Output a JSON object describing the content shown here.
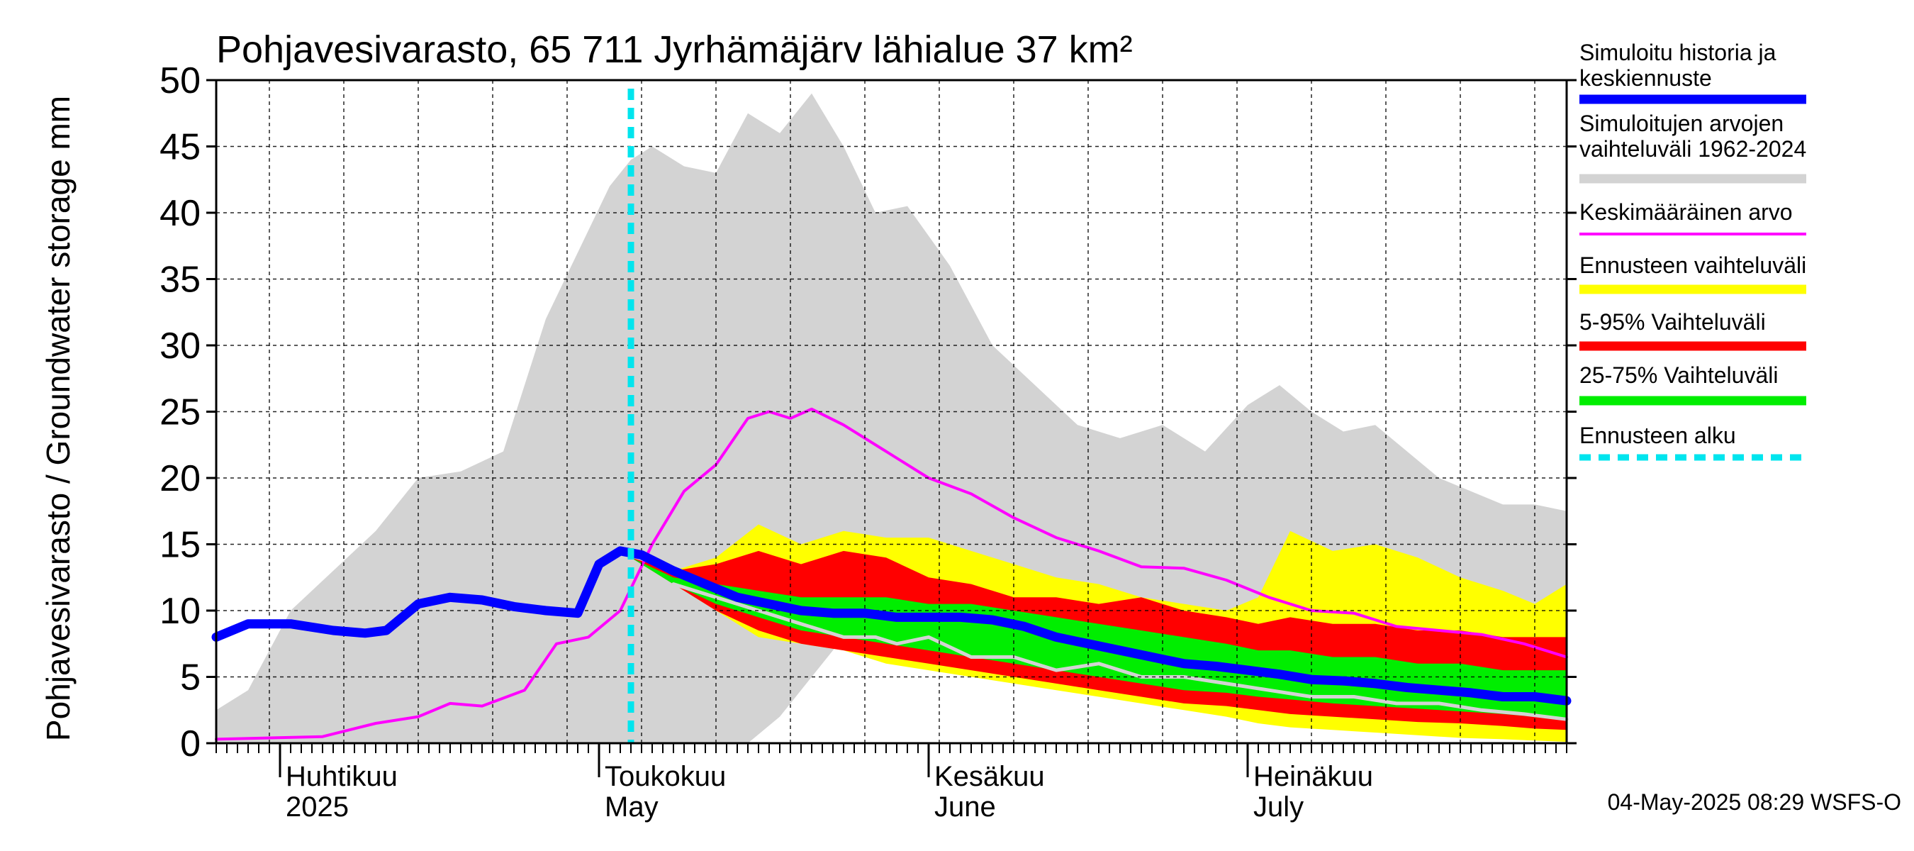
{
  "chart_data": {
    "type": "area",
    "title": "Pohjavesivarasto, 65 711 Jyrhämäjärv lähialue 37 km²",
    "ylabel": "Pohjavesivarasto / Groundwater storage   mm",
    "ylim": [
      0,
      50
    ],
    "yticks": [
      0,
      5,
      10,
      15,
      20,
      25,
      30,
      35,
      40,
      45,
      50
    ],
    "xlim": [
      "2025-03-26",
      "2025-07-31"
    ],
    "month_labels": [
      {
        "date": "2025-04-01",
        "line1": "Huhtikuu",
        "line2": "2025"
      },
      {
        "date": "2025-05-01",
        "line1": "Toukokuu",
        "line2": "May"
      },
      {
        "date": "2025-06-01",
        "line1": "Kesäkuu",
        "line2": "June"
      },
      {
        "date": "2025-07-01",
        "line1": "Heinäkuu",
        "line2": "July"
      }
    ],
    "forecast_start": "2025-05-04",
    "series": [
      {
        "name": "Simuloitujen arvojen vaihteluväli 1962-2024",
        "color": "#d3d3d3",
        "x": [
          "2025-03-26",
          "2025-03-29",
          "2025-04-02",
          "2025-04-06",
          "2025-04-10",
          "2025-04-14",
          "2025-04-18",
          "2025-04-22",
          "2025-04-26",
          "2025-04-29",
          "2025-05-02",
          "2025-05-04",
          "2025-05-06",
          "2025-05-09",
          "2025-05-12",
          "2025-05-15",
          "2025-05-18",
          "2025-05-21",
          "2025-05-24",
          "2025-05-27",
          "2025-05-30",
          "2025-06-03",
          "2025-06-07",
          "2025-06-11",
          "2025-06-15",
          "2025-06-19",
          "2025-06-23",
          "2025-06-27",
          "2025-07-01",
          "2025-07-04",
          "2025-07-07",
          "2025-07-10",
          "2025-07-13",
          "2025-07-16",
          "2025-07-19",
          "2025-07-22",
          "2025-07-25",
          "2025-07-28",
          "2025-07-31"
        ],
        "upper": [
          2.5,
          4,
          10,
          13,
          16,
          20,
          20.5,
          22,
          32,
          37,
          42,
          44,
          45,
          43.5,
          43,
          47.5,
          46,
          49,
          45,
          40,
          40.5,
          36,
          30,
          27,
          24,
          23,
          24,
          22,
          25.5,
          27,
          25,
          23.5,
          24,
          22,
          20,
          19,
          18,
          18,
          17.5
        ],
        "lower": [
          0,
          0,
          0,
          0,
          0,
          0,
          0,
          0,
          0,
          0,
          0,
          0,
          0,
          0,
          0,
          0,
          2,
          5,
          8,
          8,
          7,
          6,
          5,
          4.5,
          4,
          3.5,
          3,
          3,
          2.5,
          2,
          2,
          1.8,
          1.6,
          1.4,
          1.2,
          1,
          0.8,
          0.6,
          0.5
        ]
      },
      {
        "name": "Ennusteen vaihteluväli",
        "color": "#ffff00",
        "x": [
          "2025-05-04",
          "2025-05-08",
          "2025-05-12",
          "2025-05-16",
          "2025-05-20",
          "2025-05-24",
          "2025-05-28",
          "2025-06-01",
          "2025-06-05",
          "2025-06-09",
          "2025-06-13",
          "2025-06-17",
          "2025-06-21",
          "2025-06-25",
          "2025-06-29",
          "2025-07-02",
          "2025-07-05",
          "2025-07-09",
          "2025-07-13",
          "2025-07-17",
          "2025-07-21",
          "2025-07-25",
          "2025-07-28",
          "2025-07-31"
        ],
        "upper": [
          14,
          13,
          14,
          16.5,
          15,
          16,
          15.5,
          15.5,
          14.5,
          13.5,
          12.5,
          12,
          11,
          10.5,
          10,
          11,
          16,
          14.5,
          15,
          14,
          12.5,
          11.5,
          10.5,
          12
        ],
        "lower": [
          14,
          12,
          10,
          8,
          7.5,
          7,
          6,
          5.5,
          5,
          4.5,
          4,
          3.5,
          3,
          2.5,
          2,
          1.5,
          1.2,
          1,
          0.8,
          0.6,
          0.4,
          0.3,
          0.2,
          0.1
        ]
      },
      {
        "name": "5-95% Vaihteluväli",
        "color": "#ff0000",
        "x": [
          "2025-05-04",
          "2025-05-08",
          "2025-05-12",
          "2025-05-16",
          "2025-05-20",
          "2025-05-24",
          "2025-05-28",
          "2025-06-01",
          "2025-06-05",
          "2025-06-09",
          "2025-06-13",
          "2025-06-17",
          "2025-06-21",
          "2025-06-25",
          "2025-06-29",
          "2025-07-02",
          "2025-07-05",
          "2025-07-09",
          "2025-07-13",
          "2025-07-17",
          "2025-07-21",
          "2025-07-25",
          "2025-07-28",
          "2025-07-31"
        ],
        "upper": [
          14,
          13,
          13.5,
          14.5,
          13.5,
          14.5,
          14,
          12.5,
          12,
          11,
          11,
          10.5,
          11,
          10,
          9.5,
          9,
          9.5,
          9,
          9,
          8.5,
          8.5,
          8,
          8,
          8
        ],
        "lower": [
          14,
          12,
          10,
          8.5,
          7.5,
          7,
          6.5,
          6,
          5.5,
          5,
          4.5,
          4,
          3.5,
          3,
          2.8,
          2.5,
          2.2,
          2,
          1.8,
          1.6,
          1.5,
          1.3,
          1.1,
          1
        ]
      },
      {
        "name": "25-75% Vaihteluväli",
        "color": "#00ee00",
        "x": [
          "2025-05-04",
          "2025-05-08",
          "2025-05-12",
          "2025-05-16",
          "2025-05-20",
          "2025-05-24",
          "2025-05-28",
          "2025-06-01",
          "2025-06-05",
          "2025-06-09",
          "2025-06-13",
          "2025-06-17",
          "2025-06-21",
          "2025-06-25",
          "2025-06-29",
          "2025-07-02",
          "2025-07-05",
          "2025-07-09",
          "2025-07-13",
          "2025-07-17",
          "2025-07-21",
          "2025-07-25",
          "2025-07-28",
          "2025-07-31"
        ],
        "upper": [
          14,
          12.5,
          12,
          11.5,
          11,
          11,
          11,
          10.5,
          10.5,
          10,
          9.5,
          9,
          8.5,
          8,
          7.5,
          7,
          7,
          6.5,
          6.5,
          6,
          6,
          5.5,
          5.5,
          5.5
        ],
        "lower": [
          14,
          12,
          10.5,
          9.5,
          8.5,
          8,
          7.5,
          7,
          6.5,
          6,
          5.5,
          5,
          4.5,
          4,
          3.8,
          3.5,
          3.3,
          3,
          2.8,
          2.6,
          2.4,
          2.2,
          2,
          1.8
        ]
      },
      {
        "name": "Keskimääräinen arvo",
        "color": "#ff00ff",
        "x": [
          "2025-03-26",
          "2025-04-05",
          "2025-04-10",
          "2025-04-14",
          "2025-04-17",
          "2025-04-20",
          "2025-04-24",
          "2025-04-27",
          "2025-04-30",
          "2025-05-03",
          "2025-05-06",
          "2025-05-09",
          "2025-05-12",
          "2025-05-15",
          "2025-05-17",
          "2025-05-19",
          "2025-05-21",
          "2025-05-24",
          "2025-05-28",
          "2025-06-01",
          "2025-06-05",
          "2025-06-09",
          "2025-06-13",
          "2025-06-17",
          "2025-06-21",
          "2025-06-25",
          "2025-06-29",
          "2025-07-03",
          "2025-07-07",
          "2025-07-11",
          "2025-07-15",
          "2025-07-19",
          "2025-07-23",
          "2025-07-27",
          "2025-07-31"
        ],
        "values": [
          0.3,
          0.5,
          1.5,
          2,
          3,
          2.8,
          4,
          7.5,
          8,
          10,
          15,
          19,
          21,
          24.5,
          25,
          24.5,
          25.2,
          24,
          22,
          20,
          18.8,
          17,
          15.5,
          14.5,
          13.3,
          13.2,
          12.3,
          11,
          10,
          9.8,
          8.8,
          8.5,
          8.2,
          7.5,
          6.5
        ]
      },
      {
        "name": "Simuloitu historia ja keskiennuste",
        "color": "#0000ff",
        "x": [
          "2025-03-26",
          "2025-03-29",
          "2025-04-02",
          "2025-04-06",
          "2025-04-09",
          "2025-04-11",
          "2025-04-14",
          "2025-04-17",
          "2025-04-20",
          "2025-04-23",
          "2025-04-26",
          "2025-04-29",
          "2025-05-01",
          "2025-05-03",
          "2025-05-05",
          "2025-05-08",
          "2025-05-11",
          "2025-05-14",
          "2025-05-17",
          "2025-05-20",
          "2025-05-23",
          "2025-05-26",
          "2025-05-29",
          "2025-06-01",
          "2025-06-04",
          "2025-06-07",
          "2025-06-10",
          "2025-06-13",
          "2025-06-16",
          "2025-06-19",
          "2025-06-22",
          "2025-06-25",
          "2025-06-28",
          "2025-07-01",
          "2025-07-04",
          "2025-07-07",
          "2025-07-10",
          "2025-07-13",
          "2025-07-16",
          "2025-07-19",
          "2025-07-22",
          "2025-07-25",
          "2025-07-28",
          "2025-07-31"
        ],
        "values": [
          8,
          9,
          9,
          8.5,
          8.3,
          8.5,
          10.5,
          11,
          10.8,
          10.3,
          10,
          9.8,
          13.5,
          14.5,
          14.2,
          13,
          12,
          11,
          10.5,
          10,
          9.8,
          9.8,
          9.5,
          9.5,
          9.5,
          9.3,
          8.8,
          8,
          7.5,
          7,
          6.5,
          6,
          5.8,
          5.5,
          5.2,
          4.8,
          4.7,
          4.5,
          4.2,
          4,
          3.8,
          3.5,
          3.5,
          3.2
        ]
      },
      {
        "name": "Ennusteen alku",
        "color": "#00e5ee"
      },
      {
        "name": "",
        "color": "#d3d3d3",
        "x": [
          "2025-05-08",
          "2025-05-12",
          "2025-05-16",
          "2025-05-20",
          "2025-05-24",
          "2025-05-27",
          "2025-05-29",
          "2025-06-01",
          "2025-06-05",
          "2025-06-09",
          "2025-06-13",
          "2025-06-17",
          "2025-06-21",
          "2025-06-25",
          "2025-06-29",
          "2025-07-03",
          "2025-07-07",
          "2025-07-11",
          "2025-07-15",
          "2025-07-19",
          "2025-07-23",
          "2025-07-27",
          "2025-07-31"
        ],
        "values": [
          12,
          11,
          10,
          9,
          8,
          8,
          7.5,
          8,
          6.5,
          6.5,
          5.5,
          6,
          5,
          5,
          4.5,
          4,
          3.5,
          3.5,
          3,
          3,
          2.5,
          2.2,
          1.8
        ]
      }
    ],
    "legend_position": "right"
  },
  "legend": {
    "items": [
      {
        "label_lines": [
          "Simuloitu historia ja",
          "keskiennuste"
        ],
        "color": "#0000ff",
        "style": "thick"
      },
      {
        "label_lines": [
          "Simuloitujen arvojen",
          "vaihteluväli 1962-2024"
        ],
        "color": "#d3d3d3",
        "style": "thick"
      },
      {
        "label_lines": [
          "Keskimääräinen arvo"
        ],
        "color": "#ff00ff",
        "style": "thin"
      },
      {
        "label_lines": [
          "Ennusteen vaihteluväli"
        ],
        "color": "#ffff00",
        "style": "thick"
      },
      {
        "label_lines": [
          "5-95% Vaihteluväli"
        ],
        "color": "#ff0000",
        "style": "thick"
      },
      {
        "label_lines": [
          "25-75% Vaihteluväli"
        ],
        "color": "#00ee00",
        "style": "thick"
      },
      {
        "label_lines": [
          "Ennusteen alku"
        ],
        "color": "#00e5ee",
        "style": "dotted"
      }
    ]
  },
  "footer": {
    "timestamp": "04-May-2025 08:29 WSFS-O"
  }
}
